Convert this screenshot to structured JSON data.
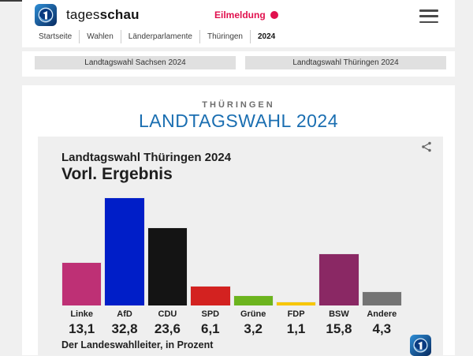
{
  "header": {
    "brand": {
      "regular": "tages",
      "bold": "schau"
    },
    "breaking_label": "Eilmeldung",
    "breadcrumb": [
      "Startseite",
      "Wahlen",
      "Länderparlamente",
      "Thüringen",
      "2024"
    ]
  },
  "tabs": [
    {
      "label": "Landtagswahl Sachsen 2024"
    },
    {
      "label": "Landtagswahl Thüringen 2024"
    }
  ],
  "page": {
    "kicker": "THÜRINGEN",
    "title": "LANDTAGSWAHL 2024"
  },
  "chart_data": {
    "type": "bar",
    "title": "Landtagswahl Thüringen 2024",
    "subtitle": "Vorl. Ergebnis",
    "source": "Der Landeswahlleiter, in Prozent",
    "unit": "Prozent",
    "categories": [
      "Linke",
      "AfD",
      "CDU",
      "SPD",
      "Grüne",
      "FDP",
      "BSW",
      "Andere"
    ],
    "values": [
      13.1,
      32.8,
      23.6,
      6.1,
      3.2,
      1.1,
      15.8,
      4.3
    ],
    "value_labels": [
      "13,1",
      "32,8",
      "23,6",
      "6,1",
      "3,2",
      "1,1",
      "15,8",
      "4,3"
    ],
    "bar_colors": [
      "#BE3075",
      "#001EC8",
      "#141414",
      "#D32220",
      "#6CB41E",
      "#F7C600",
      "#8A2864",
      "#747474"
    ],
    "ylim": [
      0,
      34
    ],
    "grid": false,
    "legend": false
  },
  "colors": {
    "accent_blue": "#1A6EB1",
    "breaking_red": "#E1114E",
    "panel_bg": "#EFEFEF",
    "page_bg": "#F0F0F0",
    "button_gray": "#E0E0E0"
  },
  "icons": {
    "menu": "hamburger",
    "share": "share-nodes",
    "brand": "ard-globe",
    "breaking_dot": "filled-circle"
  }
}
